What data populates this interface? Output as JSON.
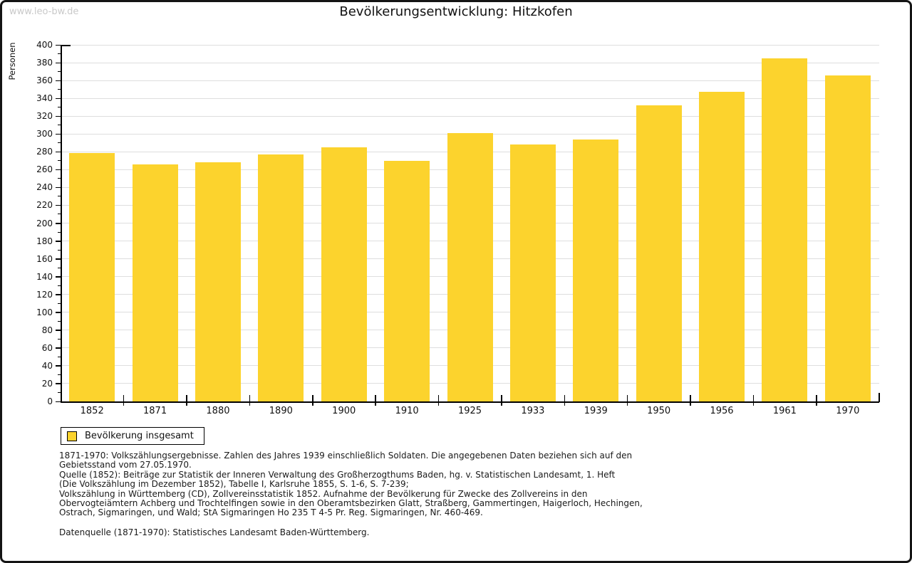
{
  "page": {
    "watermark": "www.leo-bw.de"
  },
  "chart_data": {
    "type": "bar",
    "title": "Bevölkerungsentwicklung: Hitzkofen",
    "ylabel": "Personen",
    "xlabel": "",
    "ylim": [
      0,
      400
    ],
    "ytick_step": 20,
    "minor_tick_step": 10,
    "grid": true,
    "legend_position": "bottom-left",
    "categories": [
      "1852",
      "1871",
      "1880",
      "1890",
      "1900",
      "1910",
      "1925",
      "1933",
      "1939",
      "1950",
      "1956",
      "1961",
      "1970"
    ],
    "series": [
      {
        "name": "Bevölkerung insgesamt",
        "values": [
          279,
          266,
          268,
          277,
          285,
          270,
          301,
          288,
          294,
          332,
          347,
          385,
          366
        ]
      }
    ]
  },
  "legend": {
    "label": "Bevölkerung insgesamt",
    "swatch_color": "#fcd32d"
  },
  "colors": {
    "bar": "#fcd32d",
    "grid": "#dedede",
    "axis": "#000000"
  },
  "footnotes": {
    "lines": [
      "1871-1970: Volkszählungsergebnisse. Zahlen des Jahres 1939 einschließlich Soldaten. Die angegebenen Daten beziehen sich auf den",
      "Gebietsstand vom 27.05.1970.",
      "Quelle (1852): Beiträge zur Statistik der Inneren Verwaltung des Großherzogthums Baden, hg. v. Statistischen Landesamt, 1. Heft",
      "(Die Volkszählung im Dezember 1852), Tabelle I, Karlsruhe 1855, S. 1-6, S. 7-239;",
      "Volkszählung in Württemberg (CD), Zollvereinsstatistik 1852. Aufnahme der Bevölkerung für Zwecke des Zollvereins in den",
      "Obervogteiämtern Achberg und Trochtelfingen sowie in den Oberamtsbezirken Glatt, Straßberg, Gammertingen, Haigerloch, Hechingen,",
      "Ostrach, Sigmaringen, und Wald; StA Sigmaringen Ho 235 T 4-5 Pr. Reg. Sigmaringen, Nr. 460-469."
    ],
    "datasource": "Datenquelle (1871-1970): Statistisches Landesamt Baden-Württemberg."
  }
}
